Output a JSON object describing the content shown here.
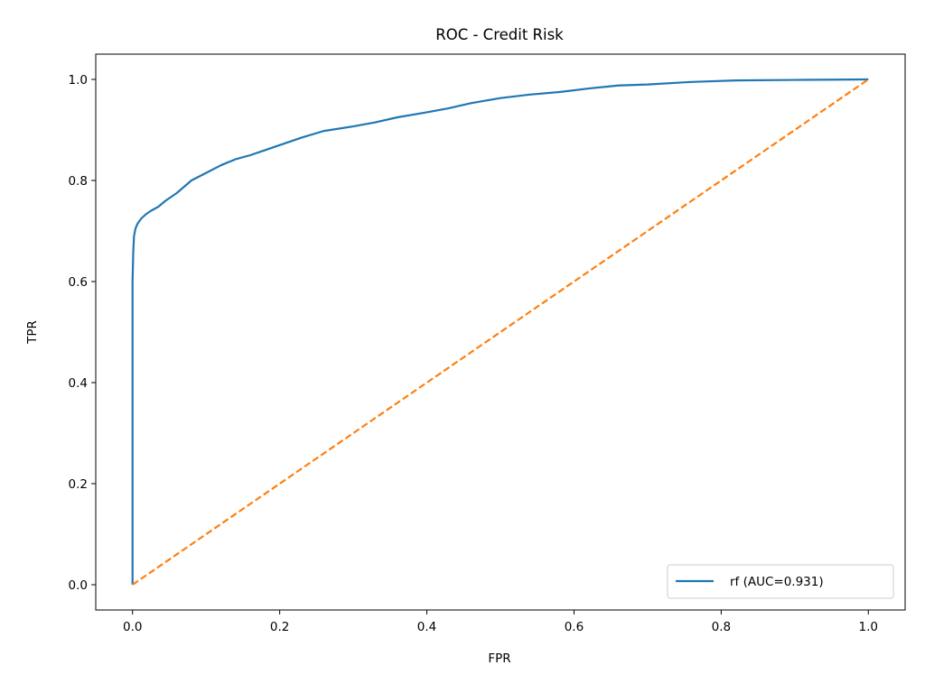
{
  "chart_data": {
    "type": "line",
    "title": "ROC - Credit Risk",
    "xlabel": "FPR",
    "ylabel": "TPR",
    "xlim": [
      -0.05,
      1.05
    ],
    "ylim": [
      -0.05,
      1.05
    ],
    "xticks": [
      "0.0",
      "0.2",
      "0.4",
      "0.6",
      "0.8",
      "1.0"
    ],
    "yticks": [
      "0.0",
      "0.2",
      "0.4",
      "0.6",
      "0.8",
      "1.0"
    ],
    "grid": false,
    "legend_position": "lower-right",
    "series": [
      {
        "name": "rf (AUC=0.931)",
        "color": "#1f77b4",
        "style": "solid",
        "x": [
          0.0,
          0.0,
          0.001,
          0.002,
          0.004,
          0.007,
          0.012,
          0.018,
          0.025,
          0.035,
          0.045,
          0.06,
          0.08,
          0.1,
          0.12,
          0.14,
          0.16,
          0.18,
          0.2,
          0.23,
          0.26,
          0.3,
          0.33,
          0.36,
          0.4,
          0.43,
          0.46,
          0.5,
          0.54,
          0.58,
          0.62,
          0.66,
          0.7,
          0.76,
          0.82,
          0.9,
          1.0
        ],
        "y": [
          0.0,
          0.6,
          0.66,
          0.69,
          0.705,
          0.715,
          0.725,
          0.733,
          0.74,
          0.748,
          0.76,
          0.775,
          0.8,
          0.815,
          0.83,
          0.842,
          0.85,
          0.86,
          0.87,
          0.885,
          0.898,
          0.907,
          0.915,
          0.925,
          0.935,
          0.943,
          0.953,
          0.963,
          0.97,
          0.975,
          0.982,
          0.988,
          0.99,
          0.995,
          0.998,
          0.999,
          1.0
        ]
      },
      {
        "name": "",
        "color": "#ff7f0e",
        "style": "dashed",
        "x": [
          0.0,
          1.0
        ],
        "y": [
          0.0,
          1.0
        ]
      }
    ]
  }
}
